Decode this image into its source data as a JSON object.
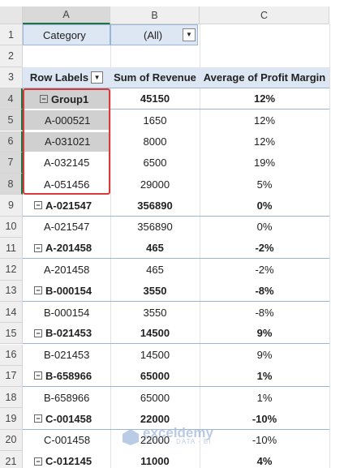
{
  "column_headers": [
    "A",
    "B",
    "C"
  ],
  "row_numbers": [
    "1",
    "2",
    "3",
    "4",
    "5",
    "6",
    "7",
    "8",
    "9",
    "10",
    "11",
    "12",
    "13",
    "14",
    "15",
    "16",
    "17",
    "18",
    "19",
    "20",
    "21"
  ],
  "filter": {
    "label": "Category",
    "value": "(All)"
  },
  "table": {
    "headers": [
      "Row Labels",
      "Sum of Revenue",
      "Average of Profit Margin"
    ],
    "rows": [
      {
        "cells": [
          "Group1",
          "45150",
          "12%"
        ],
        "group": true
      },
      {
        "cells": [
          "A-000521",
          "1650",
          "12%"
        ],
        "group": false
      },
      {
        "cells": [
          "A-031021",
          "8000",
          "12%"
        ],
        "group": false
      },
      {
        "cells": [
          "A-032145",
          "6500",
          "19%"
        ],
        "group": false
      },
      {
        "cells": [
          "A-051456",
          "29000",
          "5%"
        ],
        "group": false
      },
      {
        "cells": [
          "A-021547",
          "356890",
          "0%"
        ],
        "group": true
      },
      {
        "cells": [
          "A-021547",
          "356890",
          "0%"
        ],
        "group": false
      },
      {
        "cells": [
          "A-201458",
          "465",
          "-2%"
        ],
        "group": true
      },
      {
        "cells": [
          "A-201458",
          "465",
          "-2%"
        ],
        "group": false
      },
      {
        "cells": [
          "B-000154",
          "3550",
          "-8%"
        ],
        "group": true
      },
      {
        "cells": [
          "B-000154",
          "3550",
          "-8%"
        ],
        "group": false
      },
      {
        "cells": [
          "B-021453",
          "14500",
          "9%"
        ],
        "group": true
      },
      {
        "cells": [
          "B-021453",
          "14500",
          "9%"
        ],
        "group": false
      },
      {
        "cells": [
          "B-658966",
          "65000",
          "1%"
        ],
        "group": true
      },
      {
        "cells": [
          "B-658966",
          "65000",
          "1%"
        ],
        "group": false
      },
      {
        "cells": [
          "C-001458",
          "22000",
          "-10%"
        ],
        "group": true
      },
      {
        "cells": [
          "C-001458",
          "22000",
          "-10%"
        ],
        "group": false
      },
      {
        "cells": [
          "C-012145",
          "11000",
          "4%"
        ],
        "group": true
      }
    ]
  },
  "watermark": {
    "name": "exceldemy",
    "tagline": "EXCEL · DATA · BI"
  }
}
